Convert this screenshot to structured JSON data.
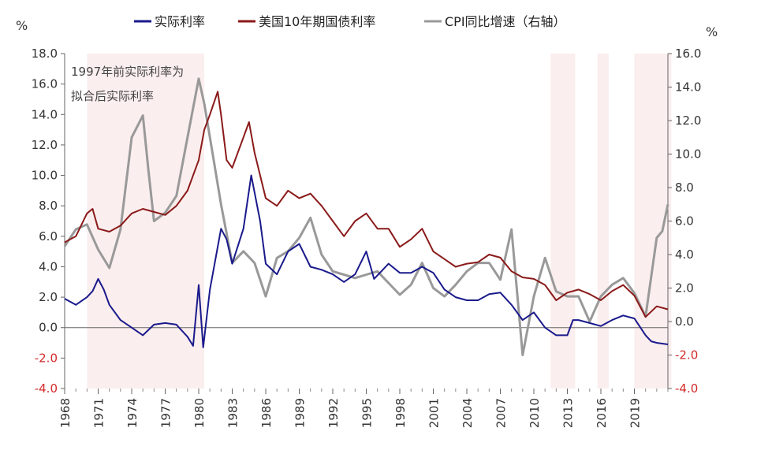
{
  "chart_data": {
    "type": "line",
    "units": {
      "left": "%",
      "right": "%"
    },
    "annotation": [
      "1997年前实际利率为",
      "拟合后实际利率"
    ],
    "legend": {
      "placement": "top"
    },
    "x_axis": {
      "range": [
        1968,
        2022
      ],
      "tick_labels": [
        "1968",
        "1971",
        "1974",
        "1977",
        "1980",
        "1983",
        "1986",
        "1989",
        "1992",
        "1995",
        "1998",
        "2001",
        "2004",
        "2007",
        "2010",
        "2013",
        "2016",
        "2019"
      ]
    },
    "y_axis_left": {
      "range": [
        -4,
        18
      ],
      "tick_labels": [
        "18.0",
        "16.0",
        "14.0",
        "12.0",
        "10.0",
        "8.0",
        "6.0",
        "4.0",
        "2.0",
        "0.0",
        "-2.0",
        "-4.0"
      ]
    },
    "y_axis_right": {
      "range": [
        -4,
        16
      ],
      "tick_labels": [
        "16.0",
        "14.0",
        "12.0",
        "10.0",
        "8.0",
        "6.0",
        "4.0",
        "2.0",
        "0.0",
        "-2.0",
        "-4.0"
      ]
    },
    "shaded_periods": [
      [
        1970,
        1980.5
      ],
      [
        2011.5,
        2013.7
      ],
      [
        2015.7,
        2016.7
      ],
      [
        2019,
        2022.3
      ]
    ],
    "colors": {
      "real_rate": "#1a1a8c",
      "treasury": "#8b1a1a",
      "cpi": "#999999",
      "shade": "#fbeeee",
      "negative_label": "#d42a2a"
    },
    "series": [
      {
        "name": "实际利率",
        "axis": "left",
        "points": [
          [
            1968,
            1.9
          ],
          [
            1969,
            1.5
          ],
          [
            1970,
            2.0
          ],
          [
            1970.5,
            2.4
          ],
          [
            1971,
            3.2
          ],
          [
            1971.5,
            2.5
          ],
          [
            1972,
            1.5
          ],
          [
            1973,
            0.5
          ],
          [
            1974,
            0.0
          ],
          [
            1975,
            -0.5
          ],
          [
            1976,
            0.2
          ],
          [
            1977,
            0.3
          ],
          [
            1978,
            0.2
          ],
          [
            1979,
            -0.6
          ],
          [
            1979.5,
            -1.2
          ],
          [
            1980,
            2.8
          ],
          [
            1980.4,
            -1.3
          ],
          [
            1981,
            2.5
          ],
          [
            1982,
            6.5
          ],
          [
            1982.5,
            5.8
          ],
          [
            1983,
            4.2
          ],
          [
            1984,
            6.5
          ],
          [
            1984.7,
            10.0
          ],
          [
            1985.5,
            7.0
          ],
          [
            1986,
            4.2
          ],
          [
            1987,
            3.5
          ],
          [
            1988,
            5.0
          ],
          [
            1989,
            5.5
          ],
          [
            1990,
            4.0
          ],
          [
            1991,
            3.8
          ],
          [
            1992,
            3.5
          ],
          [
            1993,
            3.0
          ],
          [
            1994,
            3.5
          ],
          [
            1995,
            5.0
          ],
          [
            1995.7,
            3.2
          ],
          [
            1997,
            4.2
          ],
          [
            1998,
            3.6
          ],
          [
            1999,
            3.6
          ],
          [
            2000,
            4.0
          ],
          [
            2001,
            3.6
          ],
          [
            2002,
            2.5
          ],
          [
            2003,
            2.0
          ],
          [
            2004,
            1.8
          ],
          [
            2005,
            1.8
          ],
          [
            2006,
            2.2
          ],
          [
            2007,
            2.3
          ],
          [
            2008,
            1.5
          ],
          [
            2009,
            0.5
          ],
          [
            2010,
            1.0
          ],
          [
            2011,
            0.0
          ],
          [
            2012,
            -0.5
          ],
          [
            2013,
            -0.5
          ],
          [
            2013.5,
            0.5
          ],
          [
            2014,
            0.5
          ],
          [
            2015,
            0.3
          ],
          [
            2016,
            0.1
          ],
          [
            2017,
            0.5
          ],
          [
            2018,
            0.8
          ],
          [
            2019,
            0.6
          ],
          [
            2020,
            -0.5
          ],
          [
            2020.5,
            -0.9
          ],
          [
            2021,
            -1.0
          ],
          [
            2022,
            -1.1
          ]
        ]
      },
      {
        "name": "美国10年期国债利率",
        "axis": "left",
        "points": [
          [
            1968,
            5.6
          ],
          [
            1969,
            6.0
          ],
          [
            1970,
            7.5
          ],
          [
            1970.5,
            7.8
          ],
          [
            1971,
            6.5
          ],
          [
            1972,
            6.3
          ],
          [
            1973,
            6.7
          ],
          [
            1974,
            7.5
          ],
          [
            1975,
            7.8
          ],
          [
            1976,
            7.6
          ],
          [
            1977,
            7.4
          ],
          [
            1978,
            8.0
          ],
          [
            1979,
            9.0
          ],
          [
            1980,
            11.0
          ],
          [
            1980.5,
            13.0
          ],
          [
            1981,
            14.0
          ],
          [
            1981.7,
            15.5
          ],
          [
            1982,
            14.0
          ],
          [
            1982.5,
            11.0
          ],
          [
            1983,
            10.5
          ],
          [
            1984,
            12.5
          ],
          [
            1984.5,
            13.5
          ],
          [
            1985,
            11.5
          ],
          [
            1986,
            8.5
          ],
          [
            1987,
            8.0
          ],
          [
            1988,
            9.0
          ],
          [
            1989,
            8.5
          ],
          [
            1990,
            8.8
          ],
          [
            1991,
            8.0
          ],
          [
            1992,
            7.0
          ],
          [
            1993,
            6.0
          ],
          [
            1994,
            7.0
          ],
          [
            1995,
            7.5
          ],
          [
            1996,
            6.5
          ],
          [
            1997,
            6.5
          ],
          [
            1998,
            5.3
          ],
          [
            1999,
            5.8
          ],
          [
            2000,
            6.5
          ],
          [
            2001,
            5.0
          ],
          [
            2002,
            4.5
          ],
          [
            2003,
            4.0
          ],
          [
            2004,
            4.2
          ],
          [
            2005,
            4.3
          ],
          [
            2006,
            4.8
          ],
          [
            2007,
            4.6
          ],
          [
            2008,
            3.7
          ],
          [
            2009,
            3.3
          ],
          [
            2010,
            3.2
          ],
          [
            2011,
            2.8
          ],
          [
            2012,
            1.8
          ],
          [
            2013,
            2.3
          ],
          [
            2014,
            2.5
          ],
          [
            2015,
            2.2
          ],
          [
            2016,
            1.8
          ],
          [
            2017,
            2.4
          ],
          [
            2018,
            2.8
          ],
          [
            2019,
            2.1
          ],
          [
            2020,
            0.7
          ],
          [
            2021,
            1.4
          ],
          [
            2022,
            1.2
          ]
        ]
      },
      {
        "name": "CPI同比增速（右轴）",
        "axis": "right",
        "points": [
          [
            1968,
            4.5
          ],
          [
            1969,
            5.5
          ],
          [
            1970,
            5.8
          ],
          [
            1971,
            4.3
          ],
          [
            1972,
            3.2
          ],
          [
            1973,
            5.5
          ],
          [
            1974,
            11.0
          ],
          [
            1975,
            12.3
          ],
          [
            1975.5,
            9.0
          ],
          [
            1976,
            6.0
          ],
          [
            1977,
            6.5
          ],
          [
            1978,
            7.5
          ],
          [
            1979,
            11.0
          ],
          [
            1980,
            14.5
          ],
          [
            1980.5,
            13.0
          ],
          [
            1981,
            11.0
          ],
          [
            1982,
            7.0
          ],
          [
            1983,
            3.5
          ],
          [
            1984,
            4.2
          ],
          [
            1985,
            3.5
          ],
          [
            1986,
            1.5
          ],
          [
            1987,
            3.8
          ],
          [
            1988,
            4.2
          ],
          [
            1989,
            5.0
          ],
          [
            1990,
            6.2
          ],
          [
            1991,
            4.0
          ],
          [
            1992,
            3.0
          ],
          [
            1993,
            2.8
          ],
          [
            1994,
            2.6
          ],
          [
            1995,
            2.8
          ],
          [
            1996,
            3.0
          ],
          [
            1997,
            2.3
          ],
          [
            1998,
            1.6
          ],
          [
            1999,
            2.2
          ],
          [
            2000,
            3.5
          ],
          [
            2001,
            2.0
          ],
          [
            2002,
            1.5
          ],
          [
            2003,
            2.2
          ],
          [
            2004,
            3.0
          ],
          [
            2005,
            3.5
          ],
          [
            2006,
            3.5
          ],
          [
            2007,
            2.5
          ],
          [
            2008,
            5.5
          ],
          [
            2009,
            -2.0
          ],
          [
            2010,
            1.5
          ],
          [
            2011,
            3.8
          ],
          [
            2012,
            1.8
          ],
          [
            2013,
            1.5
          ],
          [
            2014,
            1.5
          ],
          [
            2015,
            0.0
          ],
          [
            2016,
            1.5
          ],
          [
            2017,
            2.2
          ],
          [
            2018,
            2.6
          ],
          [
            2019,
            1.7
          ],
          [
            2020,
            0.3
          ],
          [
            2021,
            5.0
          ],
          [
            2021.5,
            5.4
          ],
          [
            2022,
            7.0
          ]
        ]
      }
    ]
  }
}
